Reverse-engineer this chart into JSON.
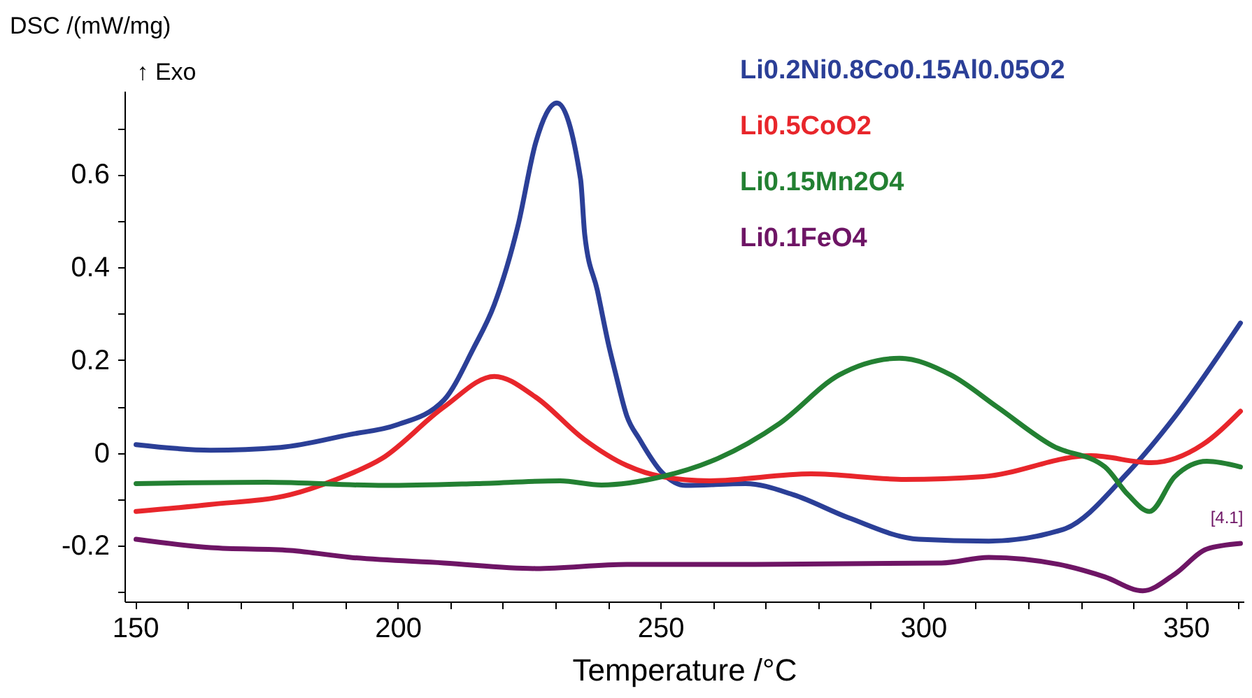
{
  "chart_data": {
    "type": "line",
    "xlabel": "Temperature /°C",
    "ylabel": "DSC /(mW/mg)",
    "annotations": [
      "↑ Exo",
      "[4.1]"
    ],
    "xlim": [
      148,
      361
    ],
    "ylim": [
      -0.32,
      0.78
    ],
    "xticks": [
      150,
      {
        "value": 160,
        "label": null
      },
      {
        "value": 170,
        "label": null
      },
      {
        "value": 180,
        "label": null
      },
      {
        "value": 190,
        "label": null
      },
      200,
      {
        "value": 210,
        "label": null
      },
      {
        "value": 220,
        "label": null
      },
      {
        "value": 230,
        "label": null
      },
      {
        "value": 240,
        "label": null
      },
      250,
      {
        "value": 260,
        "label": null
      },
      {
        "value": 270,
        "label": null
      },
      {
        "value": 280,
        "label": null
      },
      {
        "value": 290,
        "label": null
      },
      300,
      {
        "value": 310,
        "label": null
      },
      {
        "value": 320,
        "label": null
      },
      {
        "value": 330,
        "label": null
      },
      {
        "value": 340,
        "label": null
      },
      350,
      {
        "value": 360,
        "label": null
      }
    ],
    "yticks": [
      {
        "value": -0.3,
        "label": null
      },
      -0.2,
      {
        "value": -0.1,
        "label": null
      },
      0,
      {
        "value": 0.1,
        "label": null
      },
      0.2,
      {
        "value": 0.3,
        "label": null
      },
      0.4,
      {
        "value": 0.5,
        "label": null
      },
      0.6,
      {
        "value": 0.7,
        "label": null
      }
    ],
    "grid": false,
    "legend": "top",
    "line_style": "solid",
    "series": [
      {
        "name": "Li0.2Ni0.8Co0.15Al0.05O2",
        "color": "#2b3f97",
        "x": [
          150.2,
          164.4,
          177.7,
          191,
          199.7,
          208.8,
          214.4,
          218.4,
          222.9,
          226.3,
          230.3,
          234.8,
          235.6,
          238,
          240.2,
          241.5,
          243.6,
          246,
          250.3,
          254.8,
          266.2,
          275.3,
          285.9,
          299.2,
          312.5,
          326.6,
          339,
          347.9,
          360.4
        ],
        "values": [
          0.018,
          0.006,
          0.012,
          0.04,
          0.06,
          0.114,
          0.225,
          0.32,
          0.49,
          0.67,
          0.754,
          0.59,
          0.47,
          0.35,
          0.23,
          0.17,
          0.08,
          0.03,
          -0.042,
          -0.07,
          -0.066,
          -0.09,
          -0.14,
          -0.186,
          -0.19,
          -0.165,
          -0.042,
          0.078,
          0.28
        ]
      },
      {
        "name": "Li0.5CoO2",
        "color": "#e8262b",
        "x": [
          150.2,
          164.4,
          179.5,
          188.3,
          197,
          208.8,
          218.4,
          226.3,
          235.4,
          243.6,
          250.3,
          259.3,
          278.7,
          296.5,
          311.4,
          331.9,
          343.4,
          353.2,
          360.4
        ],
        "values": [
          -0.126,
          -0.111,
          -0.09,
          -0.057,
          -0.012,
          0.099,
          0.165,
          0.12,
          0.03,
          -0.027,
          -0.051,
          -0.06,
          -0.045,
          -0.057,
          -0.051,
          -0.006,
          -0.021,
          0.018,
          0.09
        ]
      },
      {
        "name": "Li0.15Mn2O4",
        "color": "#238032",
        "x": [
          150.2,
          175,
          197.5,
          215,
          230.9,
          238.8,
          250.3,
          260.9,
          272.6,
          284,
          295.5,
          305.3,
          314.1,
          324.7,
          334.6,
          339,
          343.1,
          347.9,
          354,
          360.4
        ],
        "values": [
          -0.066,
          -0.063,
          -0.07,
          -0.066,
          -0.06,
          -0.069,
          -0.051,
          -0.012,
          0.063,
          0.168,
          0.204,
          0.168,
          0.099,
          0.015,
          -0.03,
          -0.09,
          -0.126,
          -0.051,
          -0.018,
          -0.03
        ]
      },
      {
        "name": "Li0.1FeO4",
        "color": "#6e1565",
        "x": [
          150.2,
          164.4,
          179.5,
          191,
          208.8,
          226.3,
          243.6,
          268,
          303.5,
          312.5,
          325.8,
          334.6,
          341.8,
          347.9,
          354,
          360.4
        ],
        "values": [
          -0.186,
          -0.204,
          -0.21,
          -0.225,
          -0.237,
          -0.249,
          -0.24,
          -0.24,
          -0.237,
          -0.225,
          -0.24,
          -0.267,
          -0.297,
          -0.261,
          -0.207,
          -0.195
        ]
      }
    ]
  }
}
